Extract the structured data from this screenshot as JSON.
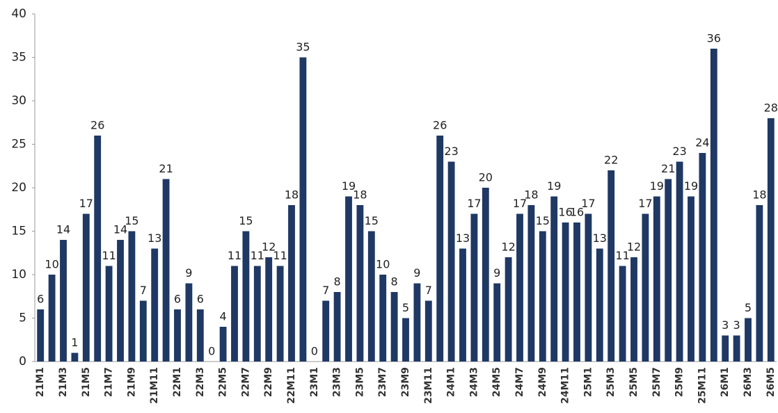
{
  "chart_data": {
    "type": "bar",
    "categories": [
      "21M1",
      null,
      "21M3",
      null,
      "21M5",
      null,
      "21M7",
      null,
      "21M9",
      null,
      "21M11",
      null,
      "22M1",
      null,
      "22M3",
      null,
      "22M5",
      null,
      "22M7",
      null,
      "22M9",
      null,
      "22M11",
      null,
      "23M1",
      null,
      "23M3",
      null,
      "23M5",
      null,
      "23M7",
      null,
      "23M9",
      null,
      "23M11",
      null,
      "24M1",
      null,
      "24M3",
      null,
      "24M5",
      null,
      "24M7",
      null,
      "24M9",
      null,
      "24M11",
      null,
      "25M1",
      null,
      "25M3",
      null,
      "25M5",
      null,
      "25M7",
      null,
      "25M9",
      null,
      "25M11",
      null,
      "26M1",
      null,
      "26M3",
      null,
      "26M5"
    ],
    "values": [
      6,
      10,
      14,
      1,
      17,
      26,
      11,
      14,
      15,
      7,
      13,
      21,
      6,
      9,
      6,
      0,
      4,
      11,
      15,
      11,
      12,
      11,
      18,
      35,
      0,
      7,
      8,
      19,
      18,
      15,
      10,
      8,
      5,
      9,
      7,
      26,
      23,
      13,
      17,
      20,
      9,
      12,
      17,
      18,
      15,
      19,
      16,
      16,
      17,
      13,
      22,
      11,
      12,
      17,
      19,
      21,
      23,
      19,
      24,
      36,
      3,
      3,
      5,
      18,
      28
    ],
    "color": "#1f3864",
    "ylim": [
      0,
      40
    ],
    "yticks": [
      0,
      5,
      10,
      15,
      20,
      25,
      30,
      35,
      40
    ],
    "grid": false
  }
}
